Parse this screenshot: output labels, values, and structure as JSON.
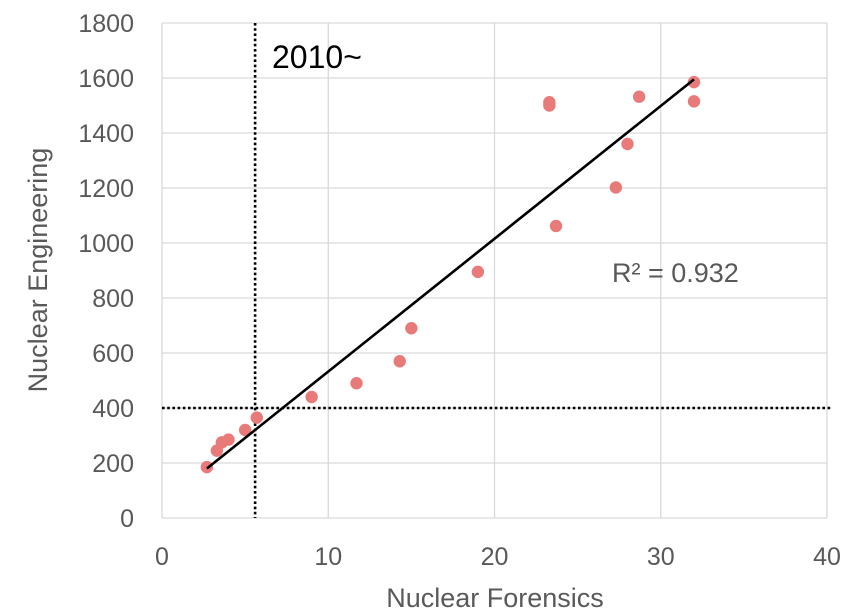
{
  "chart_data": {
    "type": "scatter",
    "xlabel": "Nuclear Forensics",
    "ylabel": "Nuclear Engineering",
    "xlim": [
      0,
      40
    ],
    "ylim": [
      0,
      1800
    ],
    "x_ticks": [
      0,
      10,
      20,
      30,
      40
    ],
    "y_ticks": [
      0,
      200,
      400,
      600,
      800,
      1000,
      1200,
      1400,
      1600,
      1800
    ],
    "grid": true,
    "series": [
      {
        "color": "#e87a7a",
        "points": [
          [
            2.7,
            185
          ],
          [
            3.3,
            245
          ],
          [
            3.6,
            275
          ],
          [
            4.0,
            285
          ],
          [
            5.0,
            320
          ],
          [
            5.7,
            365
          ],
          [
            9.0,
            440
          ],
          [
            11.7,
            490
          ],
          [
            14.3,
            570
          ],
          [
            15.0,
            690
          ],
          [
            19.0,
            895
          ],
          [
            23.3,
            1500
          ],
          [
            23.3,
            1512
          ],
          [
            23.7,
            1062
          ],
          [
            27.3,
            1202
          ],
          [
            28.0,
            1360
          ],
          [
            28.7,
            1532
          ],
          [
            32.0,
            1515
          ],
          [
            32.0,
            1585
          ]
        ]
      }
    ],
    "trendline": {
      "type": "linear",
      "from": [
        2.7,
        180
      ],
      "to": [
        32.0,
        1595
      ],
      "color": "#000000",
      "r2_label": "R² = 0.932"
    },
    "reference_lines": {
      "vertical_x": 5.6,
      "horizontal_y": 400
    },
    "annotation": "2010~"
  }
}
